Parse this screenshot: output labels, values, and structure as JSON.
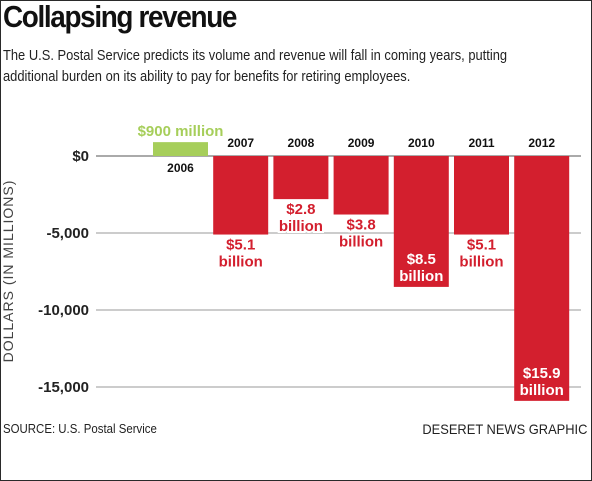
{
  "header": {
    "title": "Collapsing revenue",
    "subtitle": "The U.S. Postal Service predicts its volume and revenue will fall in coming years, putting additional burden on its ability to pay for benefits for retiring employees."
  },
  "footer": {
    "source": "SOURCE: U.S. Postal Service",
    "credit": "DESERET NEWS GRAPHIC"
  },
  "colors": {
    "negative": "#d31f2e",
    "positive": "#a6ce5a",
    "label_on_red": "#ffffff",
    "label_on_white": "#d31f2e",
    "grid": "#9a9a9a"
  },
  "chart_data": {
    "type": "bar",
    "title": "Collapsing revenue",
    "ylabel": "DOLLARS (IN MILLIONS)",
    "ylim": [
      -15900,
      900
    ],
    "yticks": [
      0,
      -5000,
      -10000,
      -15000
    ],
    "ytick_labels": [
      "$0",
      "-5,000",
      "-10,000",
      "-15,000"
    ],
    "grid": true,
    "categories": [
      "2006",
      "2007",
      "2008",
      "2009",
      "2010",
      "2011",
      "2012"
    ],
    "values": [
      900,
      -5100,
      -2800,
      -3800,
      -8500,
      -5100,
      -15900
    ],
    "data_labels": [
      [
        "$900 million"
      ],
      [
        "$5.1",
        "billion"
      ],
      [
        "$2.8",
        "billion"
      ],
      [
        "$3.8",
        "billion"
      ],
      [
        "$8.5",
        "billion"
      ],
      [
        "$5.1",
        "billion"
      ],
      [
        "$15.9",
        "billion"
      ]
    ]
  }
}
